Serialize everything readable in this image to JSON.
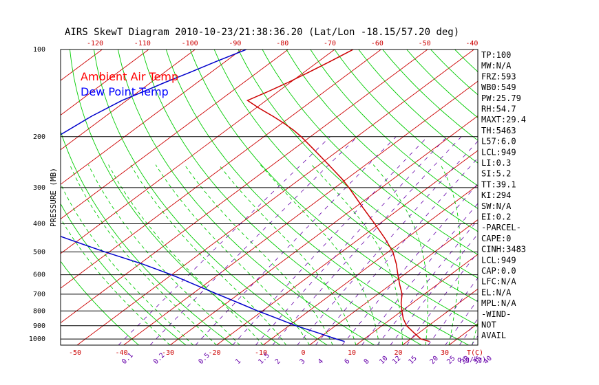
{
  "chart_data": {
    "type": "line",
    "title": "AIRS SkewT Diagram 2010-10-23/21:38:36.20 (Lat/Lon -18.15/57.20 deg)",
    "ylabel": "PRESSURE (MB)",
    "y_scale": "log",
    "ylim": [
      1050,
      100
    ],
    "pressure_ticks": [
      100,
      200,
      300,
      400,
      500,
      600,
      700,
      800,
      900,
      1000
    ],
    "bottom_temp_ticks": [
      -50,
      -40,
      -30,
      -20,
      -10,
      0,
      10,
      20,
      30
    ],
    "bottom_axis_unit": "T(C)",
    "top_temp_ticks": [
      -120,
      -110,
      -100,
      -90,
      -80,
      -70,
      -60,
      -50,
      -40
    ],
    "mixing_ratio_labels": [
      "0.1",
      "0.2",
      "0.5",
      "1",
      "1.5",
      "2",
      "3",
      "4",
      "6",
      "8",
      "10",
      "12",
      "15",
      "20",
      "25",
      "30",
      "35",
      "40"
    ],
    "mixing_ratio_unit": "q(g/kg)",
    "legend": [
      {
        "name": "Ambient Air Temp",
        "color": "#ff0000"
      },
      {
        "name": "Dew Point Temp",
        "color": "#0000ff"
      }
    ],
    "series": [
      {
        "name": "Ambient Air Temp",
        "color": "#cc0000",
        "points": [
          [
            100,
            -76
          ],
          [
            110,
            -77.5
          ],
          [
            120,
            -79
          ],
          [
            130,
            -80.5
          ],
          [
            140,
            -82.2
          ],
          [
            150,
            -84
          ],
          [
            160,
            -79
          ],
          [
            170,
            -74
          ],
          [
            180,
            -69.5
          ],
          [
            190,
            -65.5
          ],
          [
            200,
            -62
          ],
          [
            220,
            -56
          ],
          [
            250,
            -48
          ],
          [
            280,
            -41
          ],
          [
            300,
            -37
          ],
          [
            350,
            -28.5
          ],
          [
            400,
            -21
          ],
          [
            450,
            -14.5
          ],
          [
            500,
            -9
          ],
          [
            550,
            -4.8
          ],
          [
            600,
            -1.3
          ],
          [
            650,
            2
          ],
          [
            700,
            5.2
          ],
          [
            750,
            7.5
          ],
          [
            800,
            10
          ],
          [
            850,
            12.5
          ],
          [
            900,
            15.3
          ],
          [
            950,
            18.8
          ],
          [
            1000,
            22.2
          ],
          [
            1020,
            24.8
          ]
        ]
      },
      {
        "name": "Dew Point Temp",
        "color": "#0000cc",
        "points": [
          [
            100,
            -99
          ],
          [
            110,
            -102
          ],
          [
            120,
            -104.5
          ],
          [
            130,
            -107
          ],
          [
            140,
            -109
          ],
          [
            150,
            -111
          ],
          [
            170,
            -113
          ],
          [
            200,
            -114.5
          ],
          [
            250,
            -116.5
          ],
          [
            300,
            -117.5
          ],
          [
            350,
            -107
          ],
          [
            400,
            -96
          ],
          [
            450,
            -83
          ],
          [
            500,
            -71
          ],
          [
            550,
            -59.5
          ],
          [
            600,
            -50
          ],
          [
            650,
            -42
          ],
          [
            700,
            -34.5
          ],
          [
            750,
            -27.5
          ],
          [
            800,
            -21
          ],
          [
            850,
            -14.5
          ],
          [
            900,
            -8.5
          ],
          [
            950,
            -2
          ],
          [
            1000,
            4
          ],
          [
            1020,
            6.5
          ]
        ]
      }
    ]
  },
  "indices": [
    "TP:100",
    "MW:N/A",
    "FRZ:593",
    "WB0:549",
    "PW:25.79",
    "RH:54.7",
    "MAXT:29.4",
    "TH:5463",
    "L57:6.0",
    "LCL:949",
    "LI:0.3",
    "SI:5.2",
    "TT:39.1",
    "KI:294",
    "SW:N/A",
    "EI:0.2",
    "-PARCEL-",
    "CAPE:0",
    "CINH:3483",
    "LCL:949",
    "CAP:0.0",
    "LFC:N/A",
    "EL:N/A",
    "MPL:N/A",
    "-WIND-",
    "NOT",
    "AVAIL"
  ],
  "colors": {
    "dry_adiabat": "#ff0000",
    "isotherm": "#cc0000",
    "moist_adiabat": "#00cc00",
    "mixing_ratio": "#6600aa",
    "temperature_curve": "#cc0000",
    "dewpoint_curve": "#0000cc"
  }
}
